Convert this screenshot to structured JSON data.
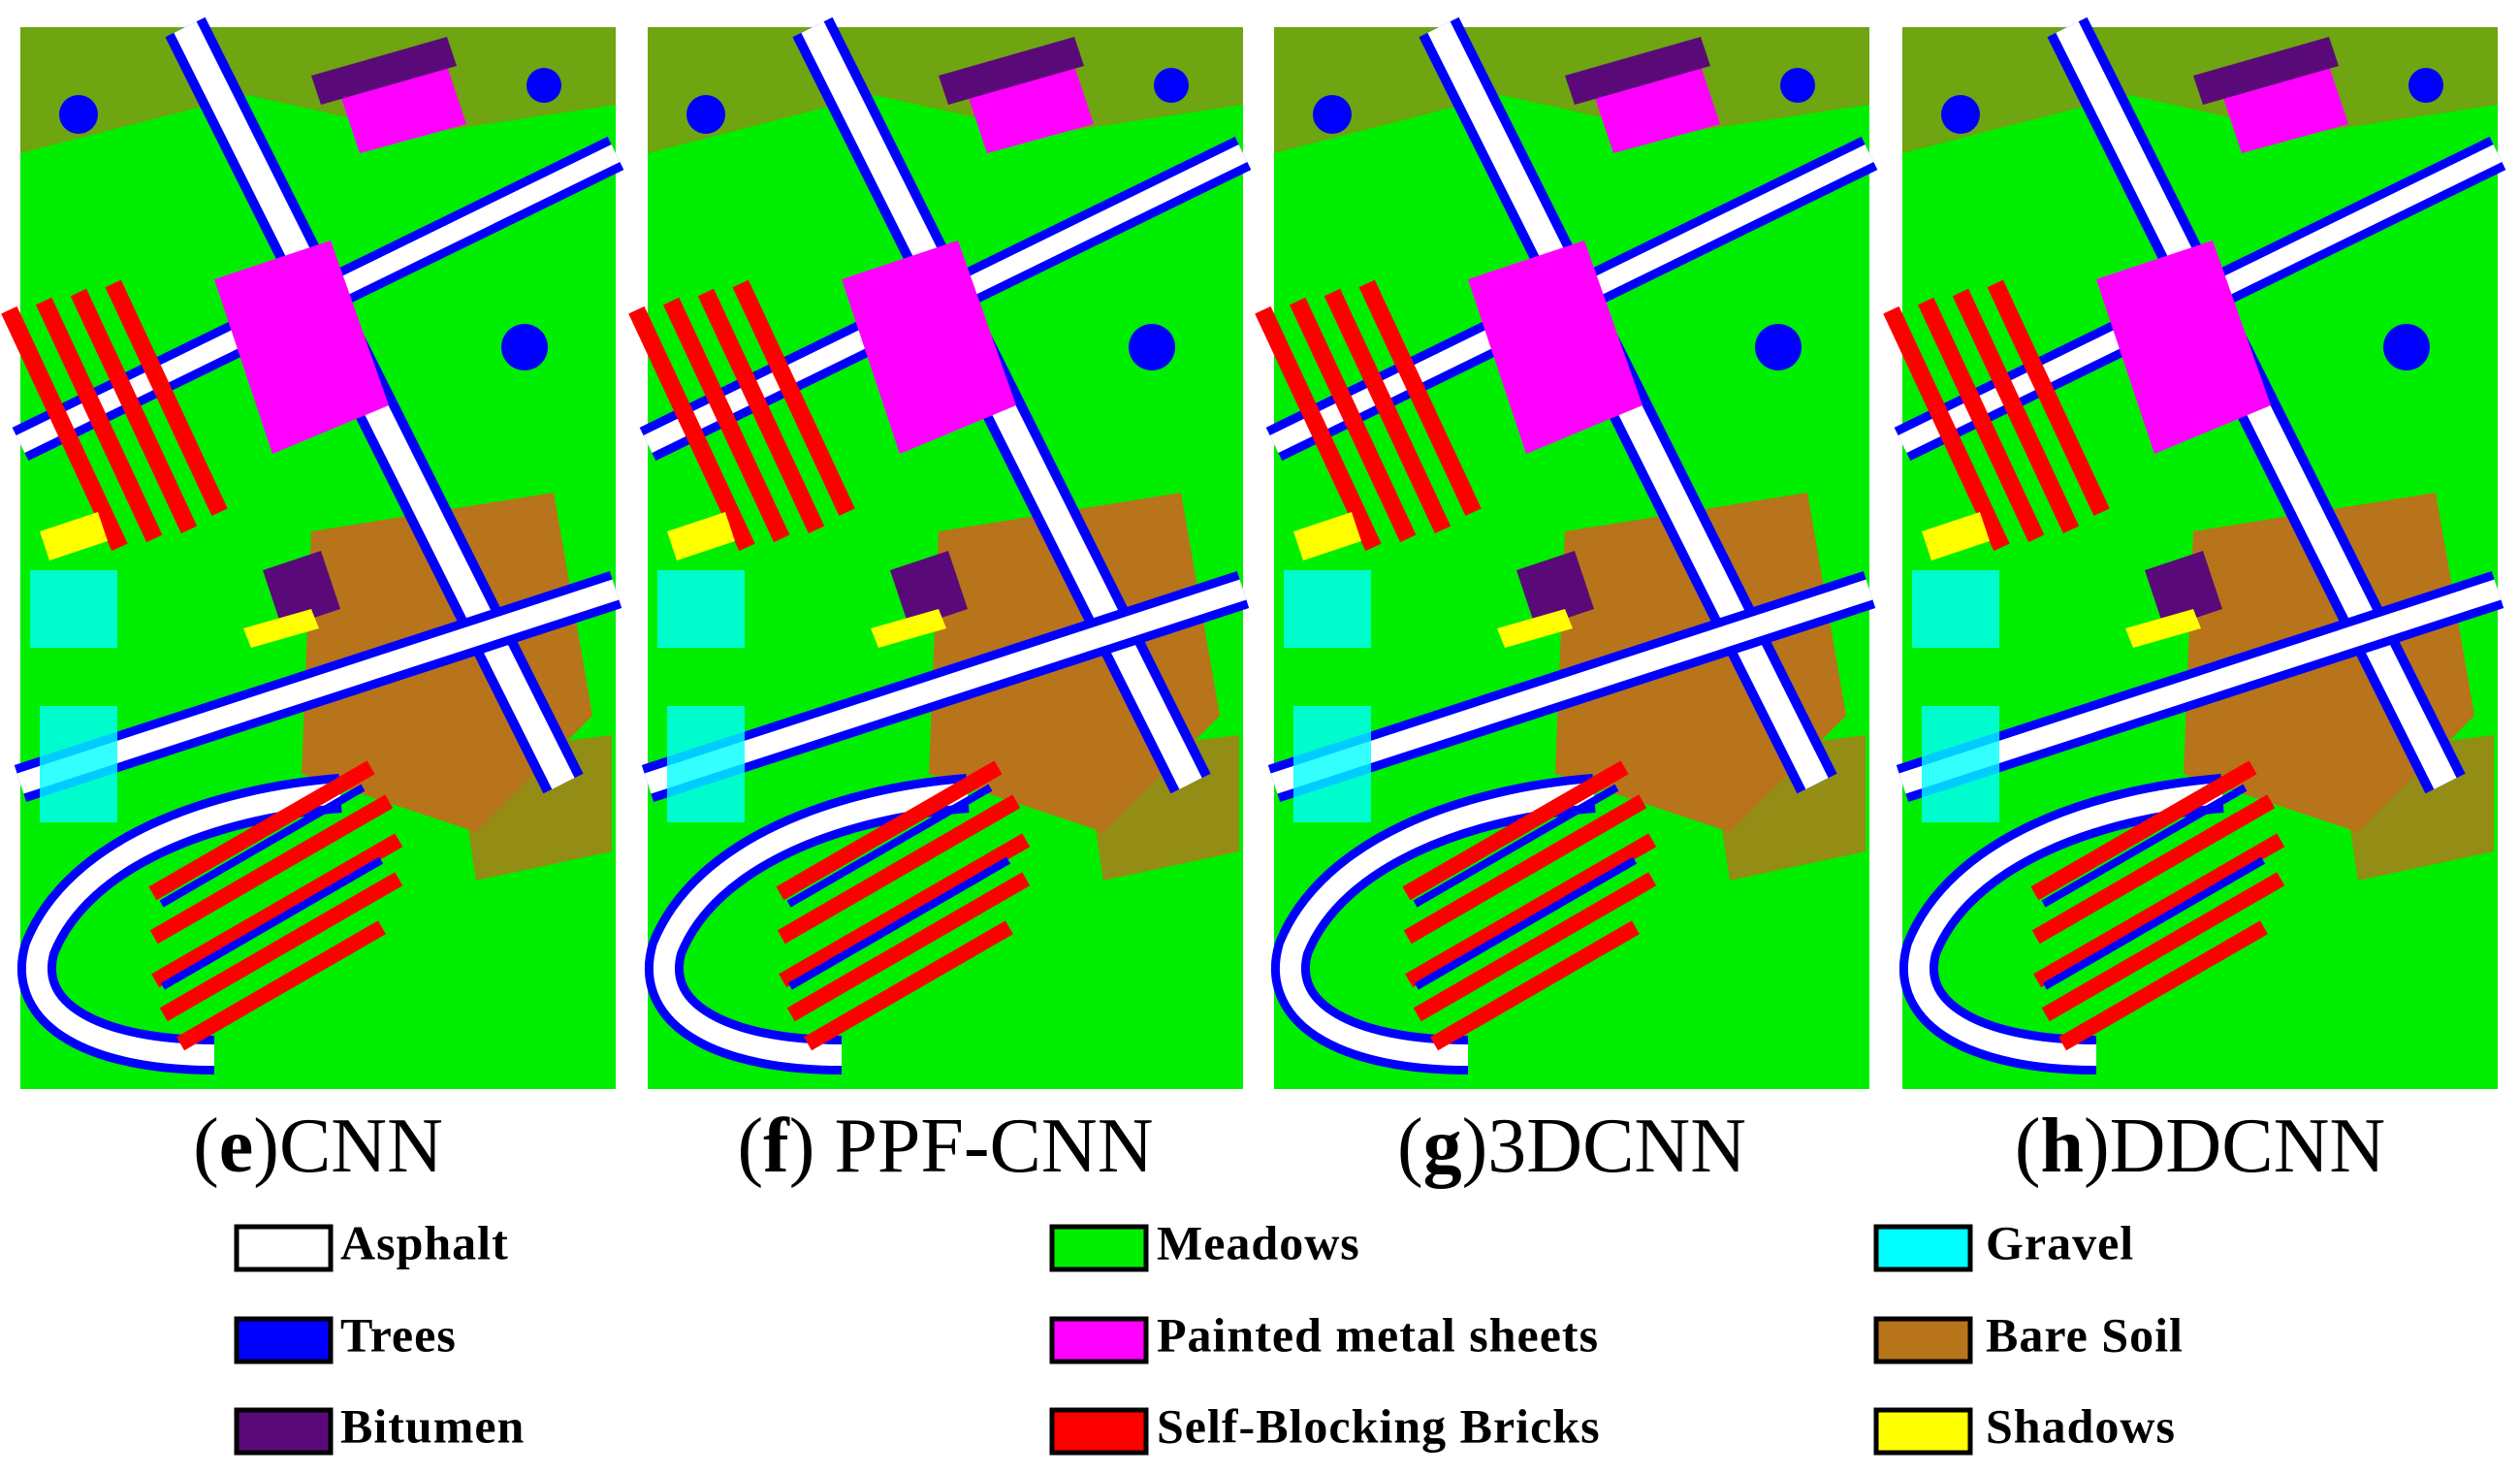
{
  "panels": [
    {
      "caption": [
        "(",
        "e",
        ")CNN"
      ]
    },
    {
      "caption": [
        "(",
        "f",
        ") PPF-CNN"
      ]
    },
    {
      "caption": [
        "(",
        "g",
        ")3DCNN"
      ]
    },
    {
      "caption": [
        "(",
        "h",
        ")DDCNN"
      ]
    }
  ],
  "legend": [
    {
      "label": "Asphalt",
      "color": "#ffffff"
    },
    {
      "label": "Trees",
      "color": "#0000ff"
    },
    {
      "label": "Bitumen",
      "color": "#5a0a78"
    },
    {
      "label": "Meadows",
      "color": "#00ee00"
    },
    {
      "label": "Painted metal sheets",
      "color": "#ff00ff"
    },
    {
      "label": "Self-Blocking Bricks",
      "color": "#ff0000"
    },
    {
      "label": "Gravel",
      "color": "#00ffff"
    },
    {
      "label": "Bare Soil",
      "color": "#b8741a"
    },
    {
      "label": "Shadows",
      "color": "#ffff00"
    }
  ]
}
